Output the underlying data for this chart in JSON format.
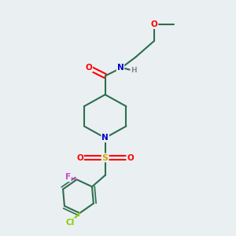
{
  "background_color": "#eaeff2",
  "bond_color": "#2d6e4e",
  "atom_colors": {
    "O": "#ff0000",
    "N": "#0000cc",
    "S": "#ccaa00",
    "F": "#cc44cc",
    "Cl": "#88cc00",
    "H": "#888888",
    "C": "#2d6e4e"
  },
  "figsize": [
    3.0,
    3.0
  ],
  "dpi": 100
}
